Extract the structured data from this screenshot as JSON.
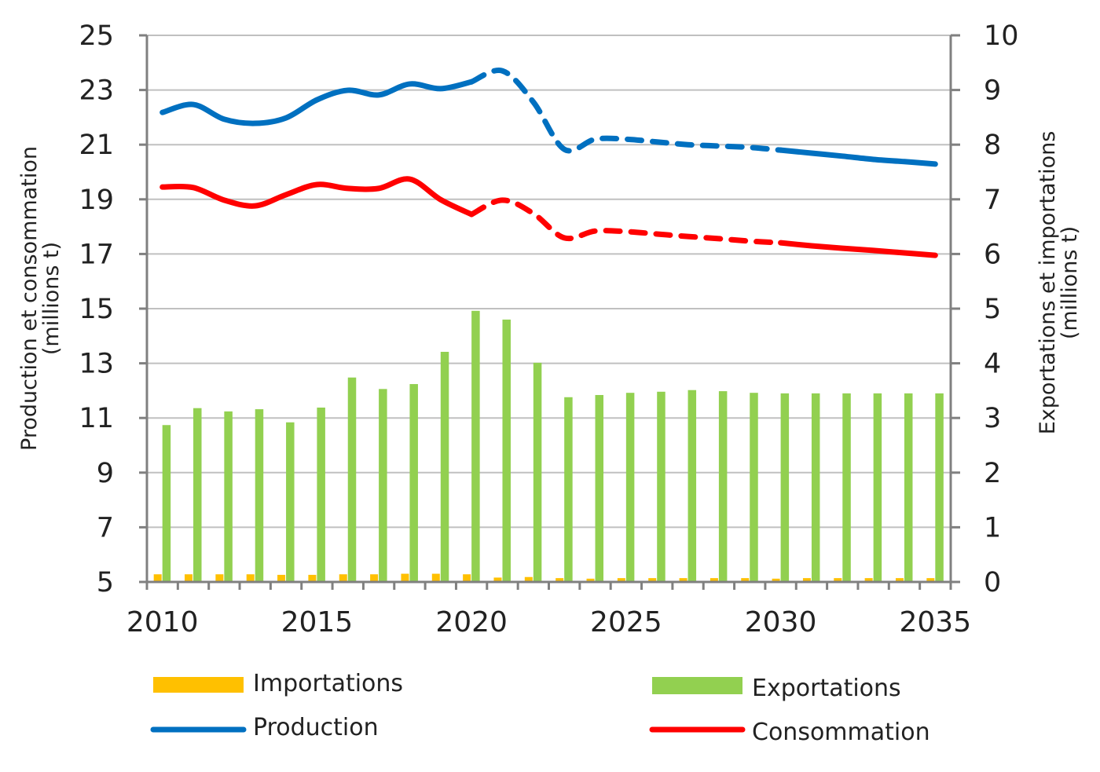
{
  "chart_data": {
    "type": "bar+line",
    "title": "",
    "ylabel_left": "Production et consommation",
    "ylabel_left_unit": "(millions t)",
    "ylabel_right": "Exportations et importations",
    "ylabel_right_unit": "(millions t)",
    "ylim_left": [
      5,
      25
    ],
    "ylim_right": [
      0,
      10
    ],
    "yticks_left": [
      "5",
      "7",
      "9",
      "11",
      "13",
      "15",
      "17",
      "19",
      "21",
      "23",
      "25"
    ],
    "yticks_right": [
      "0",
      "1",
      "2",
      "3",
      "4",
      "5",
      "6",
      "7",
      "8",
      "9",
      "10"
    ],
    "xticks": [
      "2010",
      "2015",
      "2020",
      "2025",
      "2030",
      "2035"
    ],
    "grid": true,
    "legend_position": "bottom",
    "x": [
      2010,
      2011,
      2012,
      2013,
      2014,
      2015,
      2016,
      2017,
      2018,
      2019,
      2020,
      2021,
      2022,
      2023,
      2024,
      2025,
      2026,
      2027,
      2028,
      2029,
      2030,
      2031,
      2032,
      2033,
      2034,
      2035
    ],
    "projection_dashed_range": [
      2020,
      2030
    ],
    "series": [
      {
        "name": "Importations",
        "kind": "bar",
        "axis": "right",
        "color": "#FFC000",
        "values": [
          0.14,
          0.14,
          0.14,
          0.14,
          0.13,
          0.13,
          0.14,
          0.14,
          0.15,
          0.15,
          0.14,
          0.08,
          0.09,
          0.07,
          0.06,
          0.07,
          0.07,
          0.07,
          0.07,
          0.07,
          0.06,
          0.07,
          0.07,
          0.07,
          0.07,
          0.07
        ]
      },
      {
        "name": "Exportations",
        "kind": "bar",
        "axis": "right",
        "color": "#92D050",
        "values": [
          2.87,
          3.18,
          3.12,
          3.16,
          2.92,
          3.19,
          3.74,
          3.53,
          3.62,
          4.21,
          4.96,
          4.8,
          4.01,
          3.38,
          3.42,
          3.46,
          3.48,
          3.51,
          3.49,
          3.46,
          3.45,
          3.45,
          3.45,
          3.45,
          3.45,
          3.45
        ]
      },
      {
        "name": "Production",
        "kind": "line",
        "axis": "left",
        "color": "#0070C0",
        "values": [
          22.18,
          22.47,
          21.93,
          21.78,
          21.98,
          22.64,
          22.99,
          22.82,
          23.22,
          23.05,
          23.3,
          23.7,
          22.56,
          20.83,
          21.2,
          21.2,
          21.1,
          21.0,
          20.95,
          20.9,
          20.8,
          20.69,
          20.58,
          20.46,
          20.38,
          20.29
        ]
      },
      {
        "name": "Consommation",
        "kind": "line",
        "axis": "left",
        "color": "#FF0000",
        "values": [
          19.45,
          19.43,
          18.97,
          18.76,
          19.17,
          19.54,
          19.4,
          19.4,
          19.74,
          18.99,
          18.45,
          18.97,
          18.48,
          17.59,
          17.84,
          17.82,
          17.73,
          17.64,
          17.56,
          17.47,
          17.41,
          17.3,
          17.21,
          17.13,
          17.04,
          16.95
        ]
      }
    ]
  }
}
